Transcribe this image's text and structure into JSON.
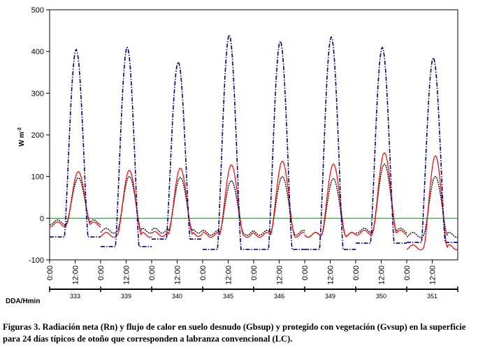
{
  "chart_data": {
    "type": "line",
    "xlabel": "DDA/Hmin",
    "ylabel": "W m",
    "ylabel_sup": "-2",
    "ylim": [
      -100,
      500
    ],
    "yticks": [
      -100,
      0,
      100,
      200,
      300,
      400,
      500
    ],
    "x_unit": "hours",
    "xlim": [
      0,
      192
    ],
    "time_tick_labels": [
      "0:00",
      "12:00",
      "0:00",
      "12:00",
      "0:00",
      "12:00",
      "0:00",
      "12:00",
      "0:00",
      "12:00",
      "0:00",
      "12:00",
      "0:00",
      "12:00",
      "0:00",
      "12:00"
    ],
    "days": [
      "333",
      "339",
      "340",
      "345",
      "346",
      "349",
      "350",
      "351"
    ],
    "zero_line": true,
    "series": [
      {
        "name": "Rn",
        "color": "#00008b",
        "style": "dashdot",
        "peaks": [
          405,
          410,
          375,
          440,
          425,
          435,
          410,
          385
        ],
        "night": [
          -45,
          -68,
          -50,
          -75,
          -75,
          -75,
          -60,
          -58
        ]
      },
      {
        "name": "Gbsup",
        "color": "#ff0000",
        "style": "solid",
        "peaks": [
          112,
          115,
          120,
          128,
          137,
          130,
          157,
          150
        ],
        "night": [
          -15,
          -40,
          -38,
          -40,
          -40,
          -40,
          -35,
          -70
        ]
      },
      {
        "name": "Gvsup",
        "color": "#000000",
        "style": "dotted",
        "peaks": [
          97,
          100,
          98,
          90,
          100,
          95,
          130,
          100
        ],
        "night": [
          -10,
          -30,
          -30,
          -35,
          -35,
          -40,
          -30,
          -40
        ]
      }
    ]
  },
  "caption": "Figuras 3. Radiación neta (Rn) y flujo de calor en suelo desnudo (Gbsup) y protegido con vegetación (Gvsup) en la superficie para 24 días típicos de otoño que corresponden a labranza convencional (LC)."
}
